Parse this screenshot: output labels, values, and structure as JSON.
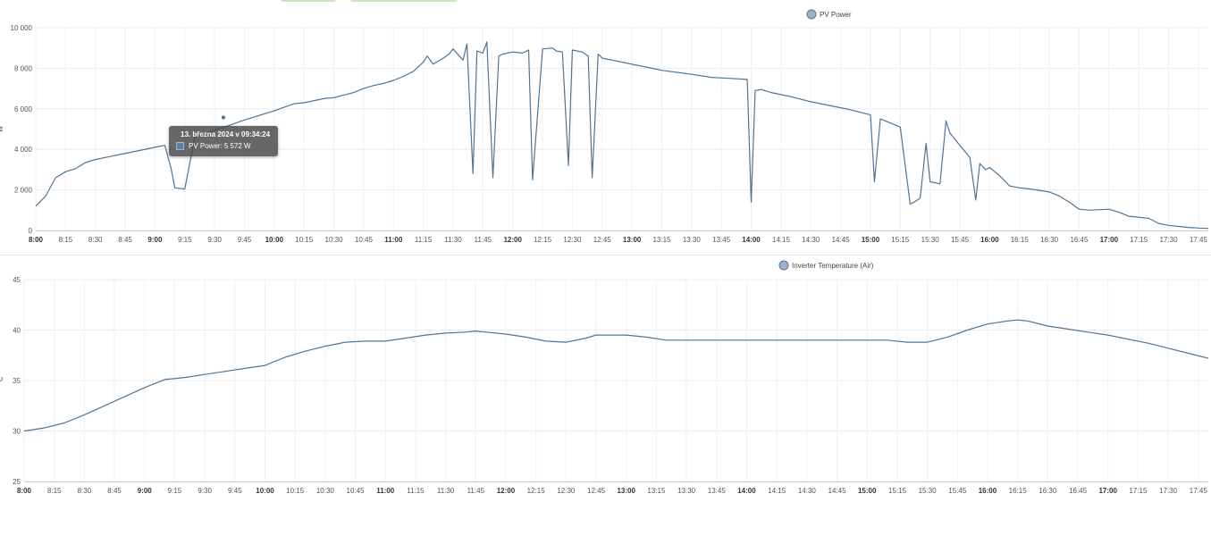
{
  "tabs": [
    {
      "name": "tab-1",
      "active": true
    },
    {
      "name": "tab-2",
      "active": true
    }
  ],
  "chart_data": [
    {
      "type": "line",
      "title": "",
      "legend": "PV Power",
      "legend_position": "top-center",
      "ylabel": "W",
      "xlabel": "",
      "ylim": [
        0,
        10000
      ],
      "yticks": [
        "0",
        "2 000",
        "4 000",
        "6 000",
        "8 000",
        "10 000"
      ],
      "ytick_values": [
        0,
        2000,
        4000,
        6000,
        8000,
        10000
      ],
      "xlim": [
        "8:00",
        "17:50"
      ],
      "xticks": [
        "8:00",
        "8:15",
        "8:30",
        "8:45",
        "9:00",
        "9:15",
        "9:30",
        "9:45",
        "10:00",
        "10:15",
        "10:30",
        "10:45",
        "11:00",
        "11:15",
        "11:30",
        "11:45",
        "12:00",
        "12:15",
        "12:30",
        "12:45",
        "13:00",
        "13:15",
        "13:30",
        "13:45",
        "14:00",
        "14:15",
        "14:30",
        "14:45",
        "15:00",
        "15:15",
        "15:30",
        "15:45",
        "16:00",
        "16:15",
        "16:30",
        "16:45",
        "17:00",
        "17:15",
        "17:30",
        "17:45"
      ],
      "grid": true,
      "color": "#4f7496",
      "series": [
        {
          "name": "PV Power",
          "x": [
            "8:00",
            "8:05",
            "8:10",
            "8:15",
            "8:20",
            "8:25",
            "8:30",
            "8:40",
            "8:50",
            "9:00",
            "9:05",
            "9:08",
            "9:10",
            "9:15",
            "9:20",
            "9:30",
            "9:35",
            "9:45",
            "10:00",
            "10:10",
            "10:15",
            "10:25",
            "10:30",
            "10:40",
            "10:45",
            "10:50",
            "10:55",
            "11:00",
            "11:05",
            "11:10",
            "11:15",
            "11:17",
            "11:20",
            "11:25",
            "11:28",
            "11:30",
            "11:35",
            "11:37",
            "11:40",
            "11:42",
            "11:45",
            "11:47",
            "11:50",
            "11:53",
            "11:55",
            "12:00",
            "12:05",
            "12:08",
            "12:10",
            "12:15",
            "12:20",
            "12:22",
            "12:25",
            "12:28",
            "12:30",
            "12:35",
            "12:38",
            "12:40",
            "12:43",
            "12:45",
            "12:50",
            "13:00",
            "13:10",
            "13:15",
            "13:30",
            "13:40",
            "13:50",
            "13:58",
            "14:00",
            "14:02",
            "14:05",
            "14:10",
            "14:20",
            "14:30",
            "14:40",
            "14:50",
            "15:00",
            "15:02",
            "15:05",
            "15:10",
            "15:15",
            "15:20",
            "15:22",
            "15:25",
            "15:28",
            "15:30",
            "15:35",
            "15:38",
            "15:40",
            "15:45",
            "15:50",
            "15:53",
            "15:55",
            "15:58",
            "16:00",
            "16:05",
            "16:10",
            "16:15",
            "16:20",
            "16:30",
            "16:35",
            "16:40",
            "16:45",
            "16:50",
            "17:00",
            "17:05",
            "17:10",
            "17:15",
            "17:20",
            "17:25",
            "17:30",
            "17:35",
            "17:40",
            "17:45",
            "17:50"
          ],
          "y": [
            1200,
            1700,
            2600,
            2900,
            3050,
            3350,
            3500,
            3700,
            3900,
            4100,
            4200,
            3100,
            2100,
            2050,
            4600,
            4950,
            5100,
            5450,
            5900,
            6250,
            6300,
            6500,
            6550,
            6800,
            7000,
            7150,
            7250,
            7400,
            7600,
            7850,
            8300,
            8600,
            8200,
            8500,
            8700,
            8950,
            8400,
            9200,
            2800,
            8850,
            8750,
            9300,
            2600,
            8600,
            8700,
            8800,
            8750,
            8900,
            2500,
            8950,
            9000,
            8850,
            8800,
            3200,
            8900,
            8800,
            8600,
            2600,
            8700,
            8500,
            8400,
            8200,
            8000,
            7900,
            7700,
            7550,
            7500,
            7450,
            1400,
            6900,
            6950,
            6800,
            6600,
            6350,
            6150,
            5950,
            5700,
            2400,
            5500,
            5300,
            5100,
            1300,
            1400,
            1600,
            4300,
            2400,
            2300,
            5400,
            4800,
            4200,
            3600,
            1500,
            3300,
            3000,
            3100,
            2700,
            2200,
            2100,
            2050,
            1900,
            1700,
            1400,
            1050,
            1000,
            1050,
            900,
            700,
            650,
            600,
            350,
            250,
            200,
            150,
            120,
            100
          ]
        }
      ],
      "tooltip": {
        "title": "13. března 2024 v 09:34:24",
        "series": "PV Power",
        "value": "5 572 W",
        "x": "9:34:24",
        "y": 5572
      }
    },
    {
      "type": "line",
      "title": "",
      "legend": "Inverter Temperature (Air)",
      "legend_position": "top-center",
      "ylabel": "°C",
      "xlabel": "",
      "ylim": [
        25,
        45
      ],
      "yticks": [
        "25",
        "30",
        "35",
        "40",
        "45"
      ],
      "ytick_values": [
        25,
        30,
        35,
        40,
        45
      ],
      "xlim": [
        "8:00",
        "17:50"
      ],
      "xticks": [
        "8:00",
        "8:15",
        "8:30",
        "8:45",
        "9:00",
        "9:15",
        "9:30",
        "9:45",
        "10:00",
        "10:15",
        "10:30",
        "10:45",
        "11:00",
        "11:15",
        "11:30",
        "11:45",
        "12:00",
        "12:15",
        "12:30",
        "12:45",
        "13:00",
        "13:15",
        "13:30",
        "13:45",
        "14:00",
        "14:15",
        "14:30",
        "14:45",
        "15:00",
        "15:15",
        "15:30",
        "15:45",
        "16:00",
        "16:15",
        "16:30",
        "16:45",
        "17:00",
        "17:15",
        "17:30",
        "17:45"
      ],
      "grid": true,
      "color": "#4f7496",
      "series": [
        {
          "name": "Inverter Temperature (Air)",
          "x": [
            "8:00",
            "8:10",
            "8:20",
            "8:30",
            "8:40",
            "8:50",
            "9:00",
            "9:10",
            "9:20",
            "9:30",
            "9:40",
            "9:50",
            "10:00",
            "10:10",
            "10:20",
            "10:30",
            "10:40",
            "10:50",
            "11:00",
            "11:10",
            "11:20",
            "11:30",
            "11:40",
            "11:45",
            "11:50",
            "12:00",
            "12:10",
            "12:20",
            "12:30",
            "12:40",
            "12:45",
            "12:50",
            "13:00",
            "13:10",
            "13:20",
            "13:30",
            "13:40",
            "13:50",
            "14:00",
            "14:20",
            "14:40",
            "15:00",
            "15:10",
            "15:20",
            "15:30",
            "15:40",
            "15:50",
            "16:00",
            "16:10",
            "16:15",
            "16:20",
            "16:30",
            "16:40",
            "16:50",
            "17:00",
            "17:10",
            "17:20",
            "17:30",
            "17:40",
            "17:50"
          ],
          "y": [
            30.0,
            30.3,
            30.8,
            31.6,
            32.5,
            33.4,
            34.3,
            35.1,
            35.3,
            35.6,
            35.9,
            36.2,
            36.5,
            37.3,
            37.9,
            38.4,
            38.8,
            38.9,
            38.9,
            39.2,
            39.5,
            39.7,
            39.8,
            39.9,
            39.8,
            39.6,
            39.3,
            38.9,
            38.8,
            39.2,
            39.5,
            39.5,
            39.5,
            39.3,
            39.0,
            39.0,
            39.0,
            39.0,
            39.0,
            39.0,
            39.0,
            39.0,
            39.0,
            38.8,
            38.8,
            39.3,
            40.0,
            40.6,
            40.9,
            41.0,
            40.9,
            40.4,
            40.1,
            39.8,
            39.5,
            39.1,
            38.7,
            38.2,
            37.7,
            37.2
          ]
        }
      ]
    }
  ]
}
